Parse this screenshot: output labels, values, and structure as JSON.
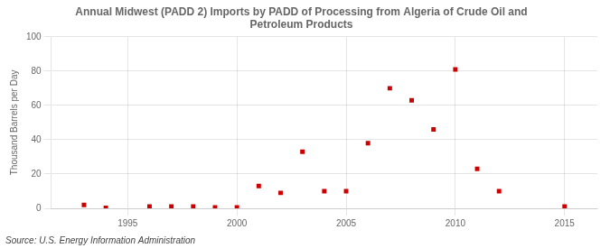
{
  "chart_data": {
    "type": "scatter",
    "title": "Annual Midwest (PADD 2) Imports by PADD of Processing from Algeria of Crude Oil and\nPetroleum Products",
    "ylabel": "Thousand Barrels per Day",
    "annotation": "Source: U.S. Energy Information Administration",
    "x": [
      1993,
      1994,
      1996,
      1997,
      1998,
      1999,
      2000,
      2001,
      2002,
      2003,
      2004,
      2005,
      2006,
      2007,
      2008,
      2009,
      2010,
      2011,
      2012,
      2015
    ],
    "values": [
      2,
      0.3,
      1,
      1,
      1,
      0.5,
      0.5,
      13,
      9,
      33,
      10,
      10,
      38,
      70,
      63,
      46,
      81,
      23,
      10,
      1
    ],
    "color": "#cc0000",
    "marker": "square",
    "xlim": [
      1991.5,
      2016.5
    ],
    "ylim": [
      0,
      100
    ],
    "xticks": [
      1995,
      2000,
      2005,
      2010,
      2015
    ],
    "yticks": [
      0,
      20,
      40,
      60,
      80,
      100
    ],
    "grid": true
  }
}
